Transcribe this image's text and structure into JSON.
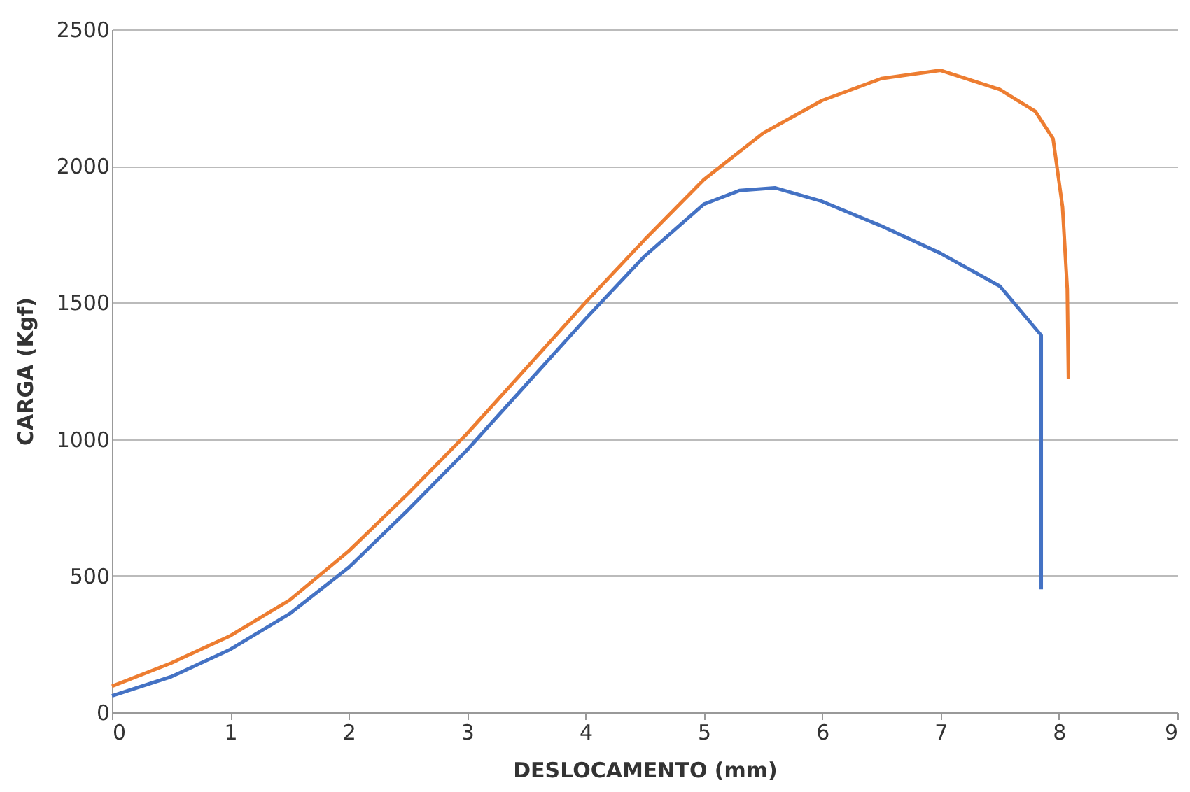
{
  "chart_data": {
    "type": "line",
    "xlabel": "DESLOCAMENTO (mm)",
    "ylabel": "CARGA (Kgf)",
    "xlim": [
      0,
      9
    ],
    "xticks": [
      0,
      1,
      2,
      3,
      4,
      5,
      6,
      7,
      8,
      9
    ],
    "ylim": [
      0,
      2500
    ],
    "yticks": [
      0,
      500,
      1000,
      1500,
      2000,
      2500
    ],
    "grid": "y",
    "marker": "none",
    "line_style": "solid",
    "series": [
      {
        "color": "#ed7d31",
        "x": [
          0,
          0.5,
          1,
          1.5,
          2,
          2.5,
          3,
          3.5,
          4,
          4.5,
          5,
          5.5,
          6,
          6.5,
          7,
          7.5,
          7.8,
          7.95,
          8.03,
          8.07,
          8.08
        ],
        "values": [
          95,
          180,
          280,
          410,
          590,
          800,
          1020,
          1260,
          1500,
          1730,
          1950,
          2120,
          2240,
          2320,
          2350,
          2280,
          2200,
          2100,
          1850,
          1550,
          1220
        ]
      },
      {
        "color": "#4472c4",
        "x": [
          0,
          0.5,
          1,
          1.5,
          2,
          2.5,
          3,
          3.5,
          4,
          4.5,
          5,
          5.3,
          5.6,
          6,
          6.5,
          7,
          7.5,
          7.85,
          7.85
        ],
        "values": [
          60,
          130,
          230,
          360,
          530,
          740,
          960,
          1200,
          1440,
          1670,
          1860,
          1910,
          1920,
          1870,
          1780,
          1680,
          1560,
          1380,
          450
        ]
      }
    ]
  }
}
